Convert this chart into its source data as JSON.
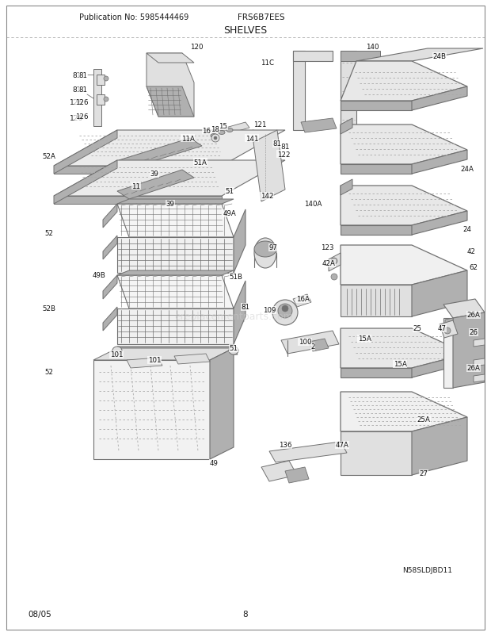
{
  "title": "SHELVES",
  "pub_no": "Publication No: 5985444469",
  "model": "FRS6B7EES",
  "page": "8",
  "date": "08/05",
  "watermark": "ereplacementparts.com",
  "bg_color": "#ffffff",
  "diagram_note": "N58SLDJBD11",
  "gray_light": "#e0e0e0",
  "gray_mid": "#b0b0b0",
  "gray_dark": "#707070",
  "black": "#1a1a1a",
  "dotted_color": "#aaaaaa"
}
